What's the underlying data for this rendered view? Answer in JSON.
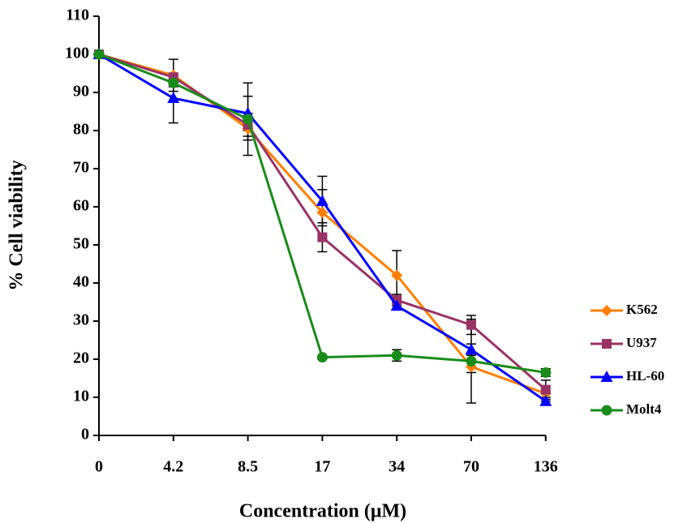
{
  "chart_data": {
    "type": "line",
    "x_label": "Concentration (μM)",
    "y_label": "% Cell viability",
    "categories": [
      "0",
      "4.2",
      "8.5",
      "17",
      "34",
      "70",
      "136"
    ],
    "ylim": [
      0,
      110
    ],
    "yticks": [
      0,
      10,
      20,
      30,
      40,
      50,
      60,
      70,
      80,
      90,
      100,
      110
    ],
    "grid": false,
    "legend": "right",
    "series": [
      {
        "name": "K562",
        "color": "#ff7f00",
        "marker": "diamond",
        "values": [
          100,
          94.5,
          80.5,
          58.5,
          42,
          18,
          11
        ],
        "errors": [
          null,
          4.2,
          3,
          6,
          6.5,
          1.5,
          2
        ]
      },
      {
        "name": "U937",
        "color": "#993366",
        "marker": "square",
        "values": [
          100,
          94,
          81.5,
          52,
          35.5,
          29,
          12
        ],
        "errors": [
          null,
          1,
          3,
          3.8,
          1.5,
          2.5,
          2.5
        ]
      },
      {
        "name": "HL-60",
        "color": "#0000ff",
        "marker": "triangle",
        "values": [
          100,
          88.5,
          84.5,
          61.5,
          34,
          22.5,
          9
        ],
        "errors": [
          null,
          6.5,
          4.5,
          6.5,
          1,
          1.5,
          1
        ]
      },
      {
        "name": "Molt4",
        "color": "#1a8c1a",
        "marker": "circle",
        "values": [
          100,
          92.5,
          83,
          20.5,
          21,
          19.5,
          16.5
        ],
        "errors": [
          null,
          1,
          9.5,
          0.5,
          1.5,
          11,
          1
        ]
      }
    ]
  }
}
